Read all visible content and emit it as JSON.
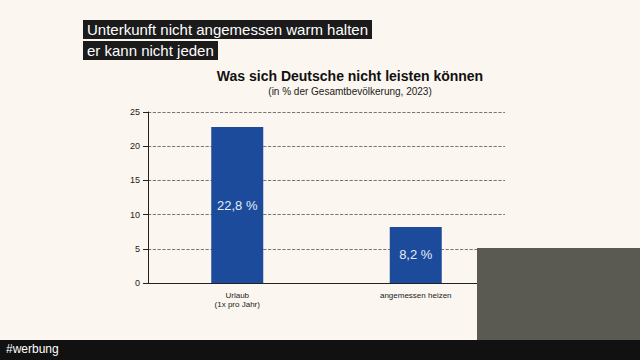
{
  "chart_data": {
    "type": "bar",
    "title": "Was sich Deutsche nicht leisten können",
    "subtitle": "(in % der Gesamtbevölkerung, 2023)",
    "categories": [
      "Urlaub\n(1x pro Jahr)",
      "angemessen heizen"
    ],
    "values": [
      22.8,
      8.2
    ],
    "value_labels": [
      "22,8 %",
      "8,2 %"
    ],
    "data_labels": true,
    "color": "#1d4b9b",
    "ylim": [
      0,
      25
    ],
    "yticks": [
      0,
      5,
      10,
      15,
      20,
      25
    ],
    "grid": true,
    "annotations": [
      "Unterkunft nicht angemessen warm halten",
      "er kann nicht jeden",
      "#werbung"
    ]
  }
}
